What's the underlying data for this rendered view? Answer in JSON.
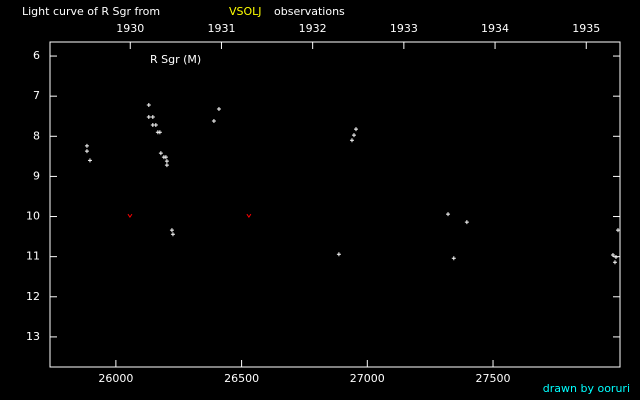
{
  "chart_data": {
    "type": "scatter",
    "title": "Light curve of R Sgr from",
    "title_source": "VSOLJ",
    "title_source_color": "#ffff00",
    "title_suffix": "observations",
    "annotation": "R Sgr (M)",
    "credit": "drawn by ooruri",
    "credit_color": "#00ffff",
    "xlim": [
      25738,
      28005
    ],
    "xticks": [
      26000,
      26500,
      27000,
      27500
    ],
    "x2lim": [
      1929.12,
      1935.37
    ],
    "x2ticks": [
      1930,
      1931,
      1932,
      1933,
      1934,
      1935
    ],
    "ylim": [
      5.65,
      13.75
    ],
    "y_inverted": true,
    "yticks": [
      6,
      7,
      8,
      9,
      10,
      11,
      12,
      13
    ],
    "series": [
      {
        "color": "#ffffff",
        "marker": "plus",
        "x": [
          25885,
          25885,
          25897,
          26131,
          26131,
          26147,
          26147,
          26159,
          26167,
          26175,
          26179,
          26191,
          26199,
          26203,
          26203,
          26223,
          26227,
          26390,
          26410,
          26887,
          26939,
          26947,
          26955,
          27321,
          27344,
          27396,
          27977,
          27989,
          27985,
          27997
        ],
        "values": [
          8.24,
          8.37,
          8.6,
          7.22,
          7.52,
          7.52,
          7.72,
          7.72,
          7.9,
          7.9,
          8.42,
          8.52,
          8.52,
          8.62,
          8.72,
          10.34,
          10.44,
          7.62,
          7.32,
          10.94,
          8.1,
          7.97,
          7.82,
          9.94,
          11.04,
          10.14,
          10.96,
          11.01,
          11.14,
          10.34
        ]
      },
      {
        "color": "#ff0000",
        "marker": "v",
        "x": [
          26056,
          26529
        ],
        "values": [
          9.99,
          9.99
        ]
      }
    ]
  }
}
